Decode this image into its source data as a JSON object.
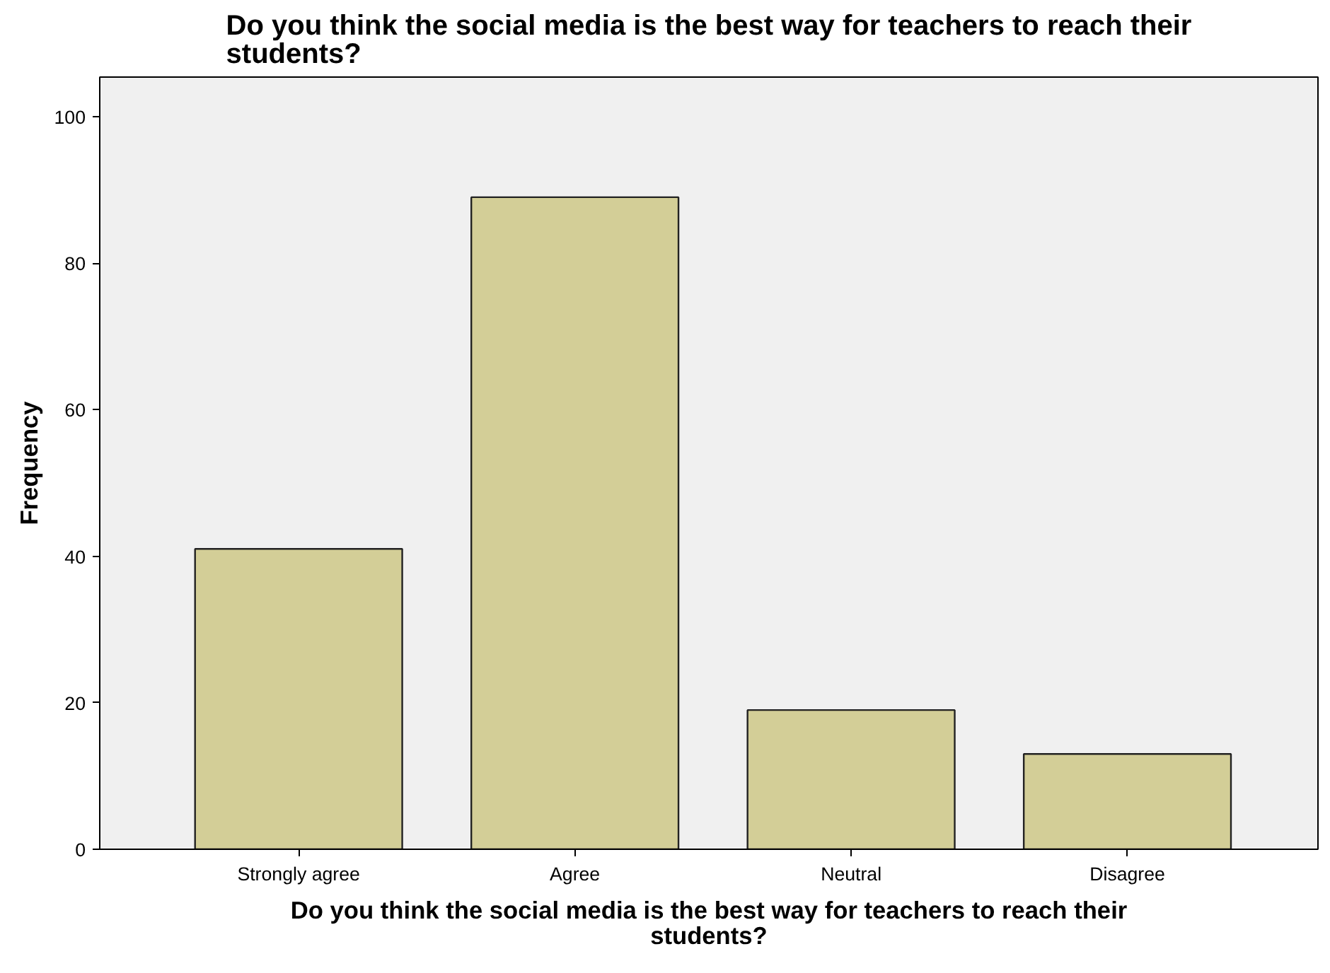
{
  "chart_data": {
    "type": "bar",
    "title": "Do you think the social media is the best way for teachers to reach their students?",
    "xlabel": "Do you think the social media is the best way for teachers to reach their students?",
    "ylabel": "Frequency",
    "categories": [
      "Strongly agree",
      "Agree",
      "Neutral",
      "Disagree"
    ],
    "values": [
      41,
      89,
      19,
      13
    ],
    "color": "#d3ce97",
    "ylim": [
      0,
      105.4
    ],
    "yticks": [
      0,
      20,
      40,
      60,
      80,
      100
    ],
    "grid": false
  }
}
